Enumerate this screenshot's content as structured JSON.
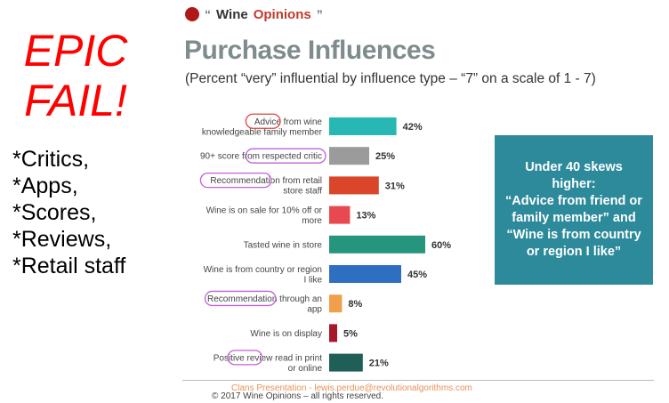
{
  "side_panel": {
    "heading_line1": "EPIC",
    "heading_line2": "FAIL!",
    "items": [
      "*Critics,",
      "*Apps,",
      "*Scores,",
      "*Reviews,",
      "*Retail staff"
    ]
  },
  "brand": {
    "quote_open": "“",
    "name_part1": "Wine",
    "name_part2": "Opinions",
    "quote_close": "”",
    "icon": "wine-glass-icon"
  },
  "chart_data": {
    "type": "bar",
    "orientation": "horizontal",
    "title": "Purchase Influences",
    "subtitle": "(Percent “very” influential by influence type – “7” on a scale of 1 - 7)",
    "unit": "%",
    "xlim": [
      0,
      60
    ],
    "grid": false,
    "categories": [
      "Advice from wine knowledgeable family member",
      "90+ score from respected critic",
      "Recommendation from retail store staff",
      "Wine is on sale for 10% off or more",
      "Tasted wine in store",
      "Wine is from country or region I like",
      "Recommendation through an app",
      "Wine is on display",
      "Positive review read in print or online"
    ],
    "values": [
      42,
      25,
      31,
      13,
      60,
      45,
      8,
      5,
      21
    ],
    "value_labels": [
      "42%",
      "25%",
      "31%",
      "13%",
      "60%",
      "45%",
      "8%",
      "5%",
      "21%"
    ],
    "label_lines": [
      [
        "Advice from wine",
        "knowledgeable family member"
      ],
      [
        "90+ score from respected critic"
      ],
      [
        "Recommendation from retail",
        "store staff"
      ],
      [
        "Wine is on sale for 10% off or",
        "more"
      ],
      [
        "Tasted wine in store"
      ],
      [
        "Wine is from country or region",
        "I like"
      ],
      [
        "Recommendation through an",
        "app"
      ],
      [
        "Wine is on display"
      ],
      [
        "Positive review read in print",
        "or online"
      ]
    ],
    "bar_colors": [
      "#27b8b4",
      "#9b9b9b",
      "#d9462a",
      "#e8484f",
      "#26957e",
      "#2f6fc2",
      "#f0a04a",
      "#a8162a",
      "#1f5f58"
    ],
    "highlights": [
      {
        "bar": 0,
        "word": "Advice",
        "color": "#e0403a"
      },
      {
        "bar": 1,
        "word": "respected critic",
        "color": "#c061d6"
      },
      {
        "bar": 2,
        "word": "Recommendation",
        "color": "#c061d6"
      },
      {
        "bar": 6,
        "word": "Recommendation",
        "color": "#c061d6"
      },
      {
        "bar": 8,
        "word": "review",
        "color": "#c061d6"
      }
    ]
  },
  "callout": {
    "lines": [
      "Under 40 skews",
      "higher:",
      "“Advice from friend or",
      "family member” and",
      "“Wine is from country",
      "or region I like”"
    ]
  },
  "footer": {
    "presenter": "Clans Presentation - lewis.perdue@revolutionalgorithms.com",
    "copyright": "© 2017 Wine Opinions – all rights reserved."
  }
}
